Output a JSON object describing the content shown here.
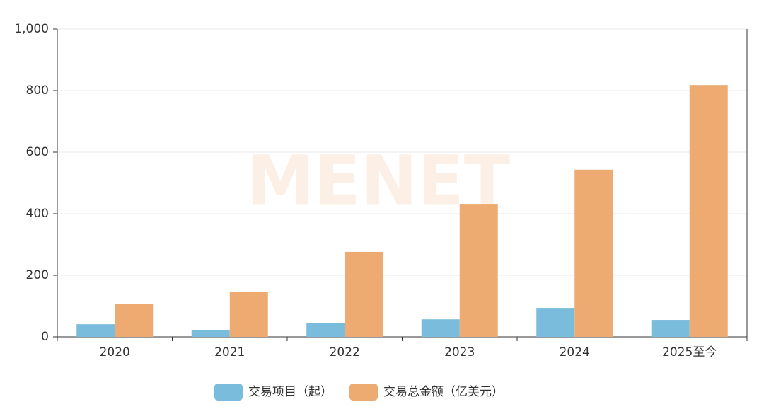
{
  "chart_data": {
    "type": "bar",
    "categories": [
      "2020",
      "2021",
      "2022",
      "2023",
      "2024",
      "2025至今"
    ],
    "series": [
      {
        "name": "交易项目（起）",
        "color": "#7abcdb",
        "values": [
          41,
          23,
          44,
          57,
          94,
          55
        ]
      },
      {
        "name": "交易总金额（亿美元）",
        "color": "#edab72",
        "values": [
          106,
          147,
          276,
          432,
          543,
          818
        ]
      }
    ],
    "ylim": [
      0,
      1000
    ],
    "yticks": [
      0,
      200,
      400,
      600,
      800,
      {
        "value": 1000,
        "label": "1,000"
      }
    ],
    "grid": true,
    "legend": "bottom",
    "watermark": "MENET"
  }
}
